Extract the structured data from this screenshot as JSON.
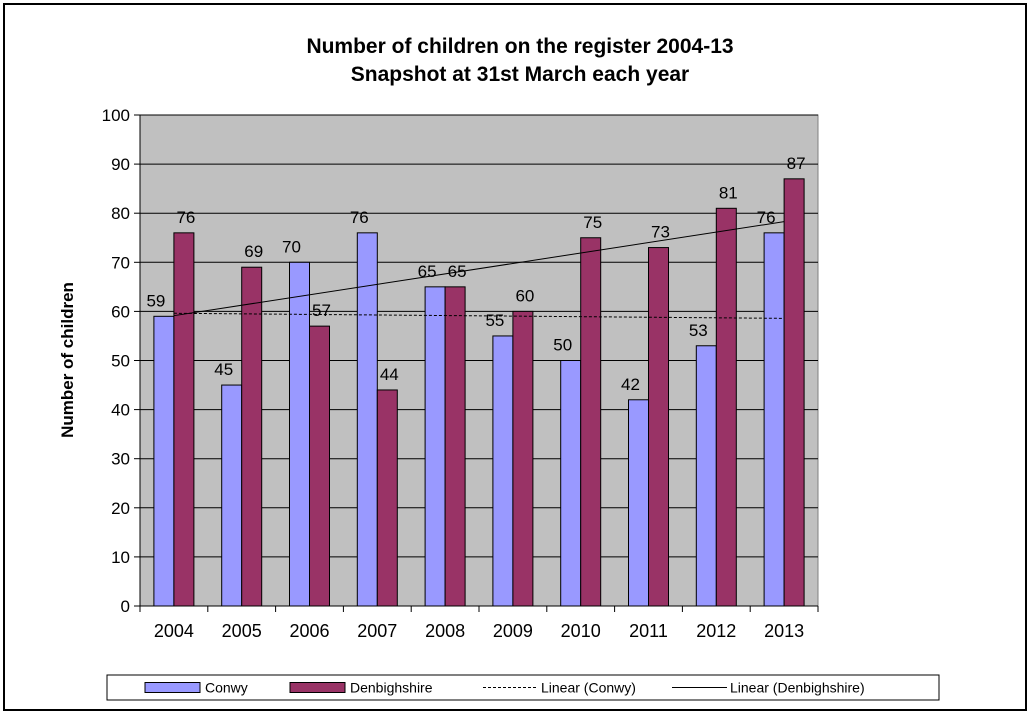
{
  "chart_data": {
    "type": "bar",
    "title": "Number of children on the register 2004-13",
    "subtitle": "Snapshot at 31st March each year",
    "ylabel": "Number of children",
    "ylim": [
      0,
      100
    ],
    "yticks": [
      0,
      10,
      20,
      30,
      40,
      50,
      60,
      70,
      80,
      90,
      100
    ],
    "categories": [
      "2004",
      "2005",
      "2006",
      "2007",
      "2008",
      "2009",
      "2010",
      "2011",
      "2012",
      "2013"
    ],
    "series": [
      {
        "name": "Conwy",
        "values": [
          59,
          45,
          70,
          76,
          65,
          55,
          50,
          42,
          53,
          76
        ],
        "color": "#9999ff"
      },
      {
        "name": "Denbighshire",
        "values": [
          76,
          69,
          57,
          44,
          65,
          60,
          75,
          73,
          81,
          87
        ],
        "color": "#993366"
      }
    ],
    "trendlines": [
      {
        "name": "Linear (Conwy)",
        "of": "Conwy",
        "style": "dashed"
      },
      {
        "name": "Linear (Denbighshire)",
        "of": "Denbighshire",
        "style": "solid"
      }
    ],
    "plot_background": "#c0c0c0",
    "grid": true,
    "legend_position": "bottom"
  }
}
